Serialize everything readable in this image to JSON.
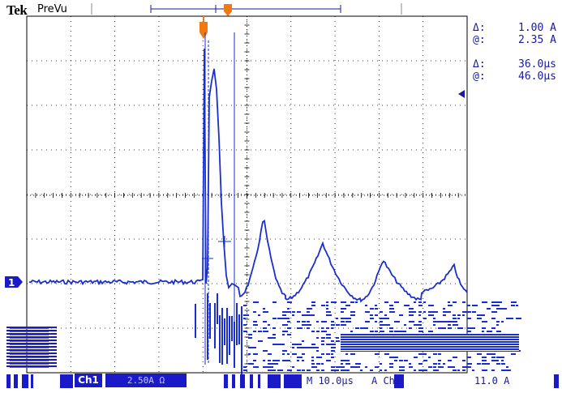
{
  "header": {
    "brand": "Tek",
    "mode": "PreVu"
  },
  "cursor_readout": {
    "amplitude_delta_symbol": "Δ:",
    "amplitude_delta": "1.00 A",
    "amplitude_at_symbol": "@:",
    "amplitude_at": "2.35 A",
    "time_delta_symbol": "Δ:",
    "time_delta": "36.0µs",
    "time_at_symbol": "@:",
    "time_at": "46.0µs"
  },
  "channel_marker": "1",
  "status_bar": {
    "channel": "Ch1",
    "volts_div": "2.50A Ω",
    "timebase": "M 10.0µs",
    "trigger_source": "A  Ch1",
    "trigger_level": "11.0 A"
  },
  "colors": {
    "trace": "#1a2ed0",
    "cursor": "#1a2ed0",
    "grid": "#000000",
    "background": "#ffffff",
    "trigger_marker": "#f07a10"
  }
}
